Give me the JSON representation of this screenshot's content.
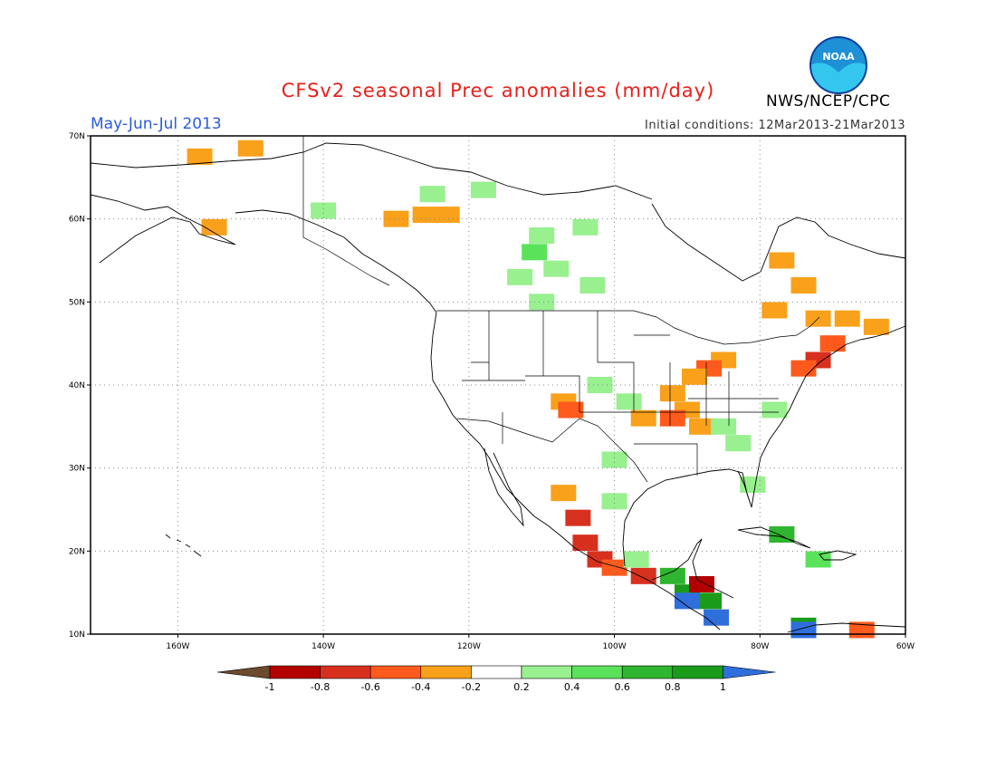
{
  "header": {
    "title": "CFSv2 seasonal Prec anomalies (mm/day)",
    "period": "May-Jun-Jul 2013",
    "initial_conditions": "Initial conditions: 12Mar2013-21Mar2013",
    "agency": "NWS/NCEP/CPC",
    "logo_text": "NOAA"
  },
  "map": {
    "lon_range": [
      -172,
      -60
    ],
    "lat_range": [
      10,
      70
    ],
    "lon_ticks": [
      {
        "value": -160,
        "label": "160W"
      },
      {
        "value": -140,
        "label": "140W"
      },
      {
        "value": -120,
        "label": "120W"
      },
      {
        "value": -100,
        "label": "100W"
      },
      {
        "value": -80,
        "label": "80W"
      },
      {
        "value": -60,
        "label": "60W"
      }
    ],
    "lat_ticks": [
      {
        "value": 10,
        "label": "10N"
      },
      {
        "value": 20,
        "label": "20N"
      },
      {
        "value": 30,
        "label": "30N"
      },
      {
        "value": 40,
        "label": "40N"
      },
      {
        "value": 50,
        "label": "50N"
      },
      {
        "value": 60,
        "label": "60N"
      },
      {
        "value": 70,
        "label": "70N"
      }
    ],
    "grid": true
  },
  "colorbar": {
    "labels": [
      "-1",
      "-0.8",
      "-0.6",
      "-0.4",
      "-0.2",
      "0.2",
      "0.4",
      "0.6",
      "0.8",
      "1"
    ],
    "colors": [
      "#6b4a2e",
      "#b30000",
      "#d7301f",
      "#fe5a1d",
      "#f9a11b",
      "#ffffff",
      "#98f08f",
      "#5be25b",
      "#2fb52f",
      "#1a9c1a",
      "#2f6fdc"
    ]
  },
  "chart_data": {
    "type": "heatmap",
    "variable": "Prec anomalies (mm/day)",
    "cells": [
      {
        "lon": -150,
        "lat": 68.5,
        "value": -0.3
      },
      {
        "lon": -157,
        "lat": 67.5,
        "value": -0.3
      },
      {
        "lon": -155,
        "lat": 59,
        "value": -0.3
      },
      {
        "lon": -130,
        "lat": 60,
        "value": -0.3
      },
      {
        "lon": -126,
        "lat": 60.5,
        "value": -0.3
      },
      {
        "lon": -123,
        "lat": 60.5,
        "value": -0.3
      },
      {
        "lon": -125,
        "lat": 63,
        "value": 0.3
      },
      {
        "lon": -118,
        "lat": 63.5,
        "value": 0.3
      },
      {
        "lon": -140,
        "lat": 61,
        "value": 0.3
      },
      {
        "lon": -110,
        "lat": 58,
        "value": 0.3
      },
      {
        "lon": -111,
        "lat": 56,
        "value": 0.5
      },
      {
        "lon": -108,
        "lat": 54,
        "value": 0.3
      },
      {
        "lon": -113,
        "lat": 53,
        "value": 0.3
      },
      {
        "lon": -104,
        "lat": 59,
        "value": 0.3
      },
      {
        "lon": -103,
        "lat": 52,
        "value": 0.3
      },
      {
        "lon": -110,
        "lat": 50,
        "value": 0.3
      },
      {
        "lon": -77,
        "lat": 55,
        "value": -0.3
      },
      {
        "lon": -74,
        "lat": 52,
        "value": -0.3
      },
      {
        "lon": -78,
        "lat": 49,
        "value": -0.3
      },
      {
        "lon": -72,
        "lat": 48,
        "value": -0.3
      },
      {
        "lon": -68,
        "lat": 48,
        "value": -0.3
      },
      {
        "lon": -64,
        "lat": 47,
        "value": -0.3
      },
      {
        "lon": -70,
        "lat": 45,
        "value": -0.5
      },
      {
        "lon": -72,
        "lat": 43,
        "value": -0.6
      },
      {
        "lon": -74,
        "lat": 42,
        "value": -0.4
      },
      {
        "lon": -85,
        "lat": 43,
        "value": -0.3
      },
      {
        "lon": -87,
        "lat": 42,
        "value": -0.5
      },
      {
        "lon": -89,
        "lat": 41,
        "value": -0.3
      },
      {
        "lon": -92,
        "lat": 39,
        "value": -0.3
      },
      {
        "lon": -90,
        "lat": 37,
        "value": -0.3
      },
      {
        "lon": -92,
        "lat": 36,
        "value": -0.5
      },
      {
        "lon": -96,
        "lat": 36,
        "value": -0.3
      },
      {
        "lon": -88,
        "lat": 35,
        "value": -0.3
      },
      {
        "lon": -107,
        "lat": 38,
        "value": -0.3
      },
      {
        "lon": -106,
        "lat": 37,
        "value": -0.5
      },
      {
        "lon": -85,
        "lat": 35,
        "value": 0.3
      },
      {
        "lon": -83,
        "lat": 33,
        "value": 0.3
      },
      {
        "lon": -78,
        "lat": 37,
        "value": 0.3
      },
      {
        "lon": -81,
        "lat": 28,
        "value": 0.3
      },
      {
        "lon": -102,
        "lat": 40,
        "value": 0.3
      },
      {
        "lon": -98,
        "lat": 38,
        "value": 0.3
      },
      {
        "lon": -100,
        "lat": 31,
        "value": 0.3
      },
      {
        "lon": -100,
        "lat": 26,
        "value": 0.3
      },
      {
        "lon": -107,
        "lat": 27,
        "value": -0.3
      },
      {
        "lon": -105,
        "lat": 24,
        "value": -0.6
      },
      {
        "lon": -104,
        "lat": 21,
        "value": -0.7
      },
      {
        "lon": -102,
        "lat": 19,
        "value": -0.7
      },
      {
        "lon": -100,
        "lat": 18,
        "value": -0.4
      },
      {
        "lon": -96,
        "lat": 17,
        "value": -0.6
      },
      {
        "lon": -97,
        "lat": 19,
        "value": 0.3
      },
      {
        "lon": -92,
        "lat": 17,
        "value": 0.6
      },
      {
        "lon": -90,
        "lat": 15,
        "value": 0.8
      },
      {
        "lon": -87,
        "lat": 14,
        "value": 0.8
      },
      {
        "lon": -90,
        "lat": 14,
        "value": 1.1
      },
      {
        "lon": -86,
        "lat": 12,
        "value": 1.1
      },
      {
        "lon": -88,
        "lat": 16,
        "value": -0.8
      },
      {
        "lon": -77,
        "lat": 22,
        "value": 0.6
      },
      {
        "lon": -72,
        "lat": 19,
        "value": 0.5
      },
      {
        "lon": -74,
        "lat": 11,
        "value": 0.8
      },
      {
        "lon": -66,
        "lat": 10.5,
        "value": -0.4
      },
      {
        "lon": -74,
        "lat": 10.5,
        "value": 1.1
      }
    ]
  }
}
